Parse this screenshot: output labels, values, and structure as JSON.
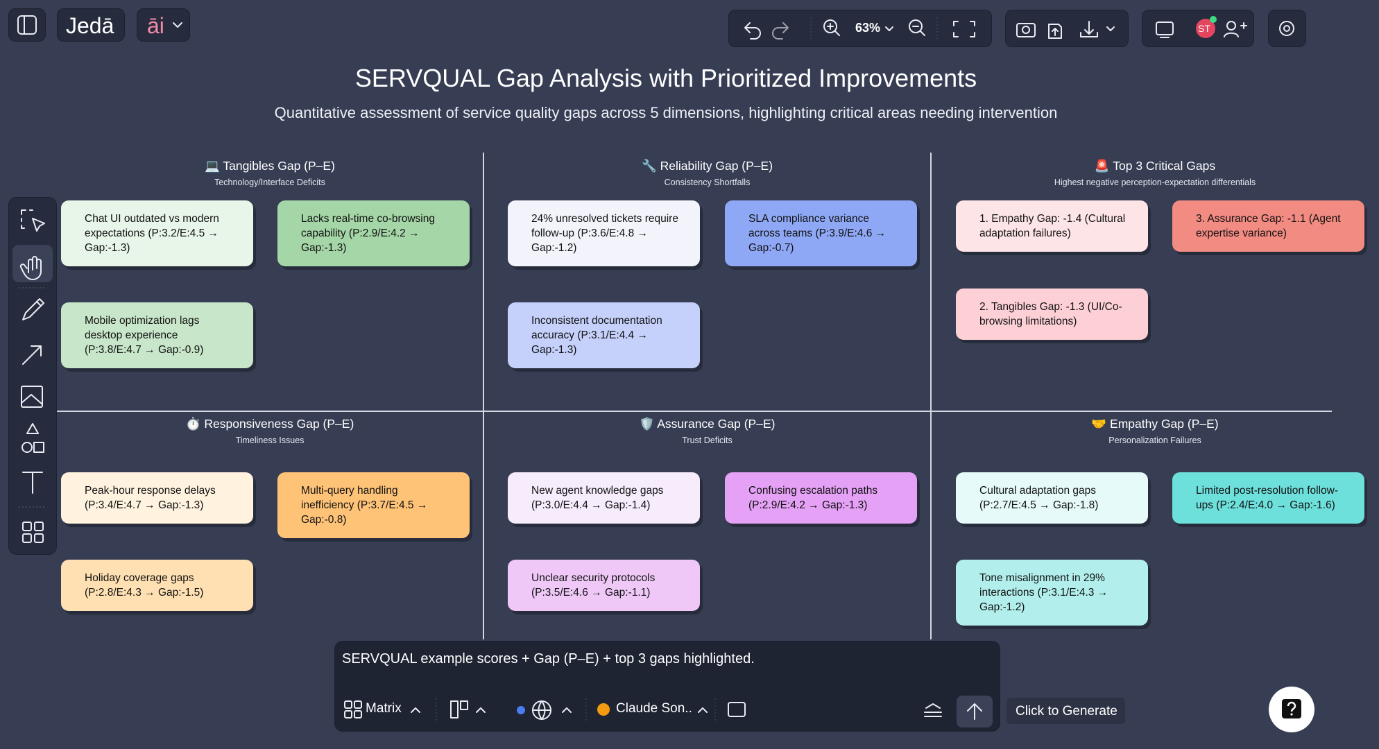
{
  "app": {
    "logo": "Jedā",
    "ai_menu": "āi",
    "zoom": "63%",
    "avatar": "ST"
  },
  "header": {
    "title": "SERVQUAL Gap Analysis with Prioritized Improvements",
    "subtitle": "Quantitative assessment of service quality gaps across 5 dimensions, highlighting critical areas needing intervention"
  },
  "panels": [
    {
      "title": "💻 Tangibles Gap (P–E)",
      "subtitle": "Technology/Interface Deficits",
      "cards": [
        {
          "text": "Chat UI outdated vs modern expectations (P:3.2/E:4.5 → Gap:-1.3)",
          "color": "#e8f5e9"
        },
        {
          "text": "Lacks real-time co-browsing capability (P:2.9/E:4.2 → Gap:-1.3)",
          "color": "#a5d6a7"
        },
        {
          "text": "Mobile optimization lags desktop experience (P:3.8/E:4.7 → Gap:-0.9)",
          "color": "#c8e6c9"
        }
      ]
    },
    {
      "title": "🔧 Reliability Gap (P–E)",
      "subtitle": "Consistency Shortfalls",
      "cards": [
        {
          "text": "24% unresolved tickets require follow-up (P:3.6/E:4.8 → Gap:-1.2)",
          "color": "#f3f4fb"
        },
        {
          "text": "SLA compliance variance across teams (P:3.9/E:4.6 → Gap:-0.7)",
          "color": "#8fa8f5"
        },
        {
          "text": "Inconsistent documentation accuracy (P:3.1/E:4.4 → Gap:-1.3)",
          "color": "#c5d0fb"
        }
      ]
    },
    {
      "title": "🚨 Top 3 Critical Gaps",
      "subtitle": "Highest negative perception-expectation differentials",
      "cards": [
        {
          "text": "1. Empathy Gap: -1.4 (Cultural adaptation failures)",
          "color": "#fde4e6"
        },
        {
          "text": "3. Assurance Gap: -1.1 (Agent expertise variance)",
          "color": "#f28b82"
        },
        {
          "text": "2. Tangibles Gap: -1.3 (UI/Co-browsing limitations)",
          "color": "#fdd0d6"
        }
      ]
    },
    {
      "title": "⏱️ Responsiveness Gap (P–E)",
      "subtitle": "Timeliness Issues",
      "cards": [
        {
          "text": "Peak-hour response delays (P:3.4/E:4.7 → Gap:-1.3)",
          "color": "#fff3e0"
        },
        {
          "text": "Multi-query handling inefficiency (P:3.7/E:4.5 → Gap:-0.8)",
          "color": "#ffc378"
        },
        {
          "text": "Holiday coverage gaps (P:2.8/E:4.3 → Gap:-1.5)",
          "color": "#ffe0b2"
        }
      ]
    },
    {
      "title": "🛡️ Assurance Gap (P–E)",
      "subtitle": "Trust Deficits",
      "cards": [
        {
          "text": "New agent knowledge gaps (P:3.0/E:4.4 → Gap:-1.4)",
          "color": "#f6ecfc"
        },
        {
          "text": "Confusing escalation paths (P:2.9/E:4.2 → Gap:-1.3)",
          "color": "#e4a1f5"
        },
        {
          "text": "Unclear security protocols (P:3.5/E:4.6 → Gap:-1.1)",
          "color": "#efc8f8"
        }
      ]
    },
    {
      "title": "🤝 Empathy Gap (P–E)",
      "subtitle": "Personalization Failures",
      "cards": [
        {
          "text": "Cultural adaptation gaps (P:2.7/E:4.5 → Gap:-1.8)",
          "color": "#e6fafa"
        },
        {
          "text": "Limited post-resolution follow-ups (P:2.4/E:4.0 → Gap:-1.6)",
          "color": "#6ee0dc"
        },
        {
          "text": "Tone misalignment in 29% interactions (P:3.1/E:4.3 → Gap:-1.2)",
          "color": "#b2efec"
        }
      ]
    }
  ],
  "prompt": {
    "text": "SERVQUAL example scores + Gap (P–E) + top 3 gaps highlighted.",
    "layout": "Matrix",
    "model": "Claude Son..",
    "tooltip": "Click to Generate"
  }
}
